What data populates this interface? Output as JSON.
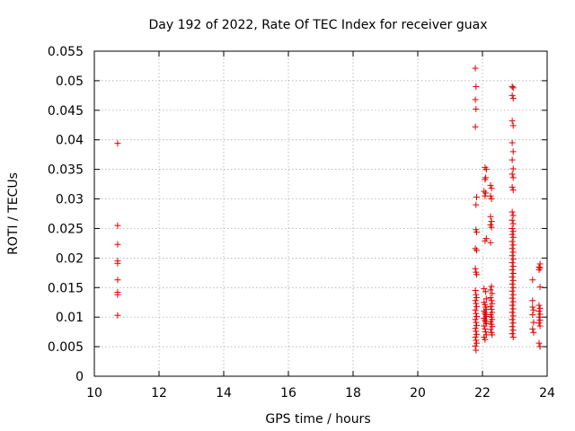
{
  "chart_data": {
    "type": "scatter",
    "title": "Day 192 of 2022, Rate Of TEC Index for receiver guax",
    "xlabel": "GPS time / hours",
    "ylabel": "ROTI / TECUs",
    "xlim": [
      10,
      24
    ],
    "ylim": [
      0,
      0.055
    ],
    "x_ticks": [
      10,
      12,
      14,
      16,
      18,
      20,
      22,
      24
    ],
    "y_ticks": [
      0,
      0.005,
      0.01,
      0.015,
      0.02,
      0.025,
      0.03,
      0.035,
      0.04,
      0.045,
      0.05,
      0.055
    ],
    "x_tick_labels": [
      "10",
      "12",
      "14",
      "16",
      "18",
      "20",
      "22",
      "24"
    ],
    "y_tick_labels": [
      "0",
      "0.005",
      "0.01",
      "0.015",
      "0.02",
      "0.025",
      "0.03",
      "0.035",
      "0.04",
      "0.045",
      "0.05",
      "0.055"
    ],
    "grid": true,
    "marker": "+",
    "color": "#e00000",
    "series": [
      {
        "name": "ROTI",
        "points": [
          [
            10.72,
            0.0394
          ],
          [
            10.72,
            0.0255
          ],
          [
            10.72,
            0.0223
          ],
          [
            10.72,
            0.0195
          ],
          [
            10.72,
            0.0191
          ],
          [
            10.72,
            0.0163
          ],
          [
            10.72,
            0.0142
          ],
          [
            10.72,
            0.0138
          ],
          [
            10.72,
            0.0103
          ],
          [
            21.78,
            0.0521
          ],
          [
            21.8,
            0.049
          ],
          [
            21.78,
            0.0468
          ],
          [
            21.8,
            0.0452
          ],
          [
            21.78,
            0.0422
          ],
          [
            21.82,
            0.0303
          ],
          [
            21.8,
            0.029
          ],
          [
            21.8,
            0.0248
          ],
          [
            21.82,
            0.0244
          ],
          [
            21.78,
            0.0216
          ],
          [
            21.82,
            0.0213
          ],
          [
            21.78,
            0.0182
          ],
          [
            21.8,
            0.0176
          ],
          [
            21.82,
            0.0172
          ],
          [
            21.78,
            0.0145
          ],
          [
            21.8,
            0.0138
          ],
          [
            21.82,
            0.0133
          ],
          [
            21.78,
            0.0128
          ],
          [
            21.8,
            0.0123
          ],
          [
            21.82,
            0.0118
          ],
          [
            21.78,
            0.0112
          ],
          [
            21.8,
            0.0106
          ],
          [
            21.82,
            0.0101
          ],
          [
            21.78,
            0.0096
          ],
          [
            21.8,
            0.0091
          ],
          [
            21.82,
            0.0086
          ],
          [
            21.78,
            0.0081
          ],
          [
            21.8,
            0.0076
          ],
          [
            21.82,
            0.0071
          ],
          [
            21.78,
            0.0066
          ],
          [
            21.8,
            0.0061
          ],
          [
            21.82,
            0.0056
          ],
          [
            21.78,
            0.0051
          ],
          [
            21.8,
            0.0044
          ],
          [
            22.08,
            0.0353
          ],
          [
            22.12,
            0.035
          ],
          [
            22.1,
            0.0336
          ],
          [
            22.08,
            0.0333
          ],
          [
            22.05,
            0.0313
          ],
          [
            22.1,
            0.031
          ],
          [
            22.08,
            0.0305
          ],
          [
            22.12,
            0.0233
          ],
          [
            22.08,
            0.0229
          ],
          [
            22.05,
            0.0148
          ],
          [
            22.1,
            0.0143
          ],
          [
            22.12,
            0.0131
          ],
          [
            22.05,
            0.0125
          ],
          [
            22.08,
            0.0121
          ],
          [
            22.1,
            0.0117
          ],
          [
            22.12,
            0.0113
          ],
          [
            22.05,
            0.011
          ],
          [
            22.08,
            0.0107
          ],
          [
            22.1,
            0.0104
          ],
          [
            22.12,
            0.0101
          ],
          [
            22.05,
            0.0098
          ],
          [
            22.08,
            0.0095
          ],
          [
            22.1,
            0.0092
          ],
          [
            22.12,
            0.0089
          ],
          [
            22.05,
            0.0085
          ],
          [
            22.08,
            0.008
          ],
          [
            22.1,
            0.0075
          ],
          [
            22.12,
            0.007
          ],
          [
            22.05,
            0.0066
          ],
          [
            22.08,
            0.0062
          ],
          [
            22.25,
            0.0323
          ],
          [
            22.28,
            0.0318
          ],
          [
            22.25,
            0.0305
          ],
          [
            22.28,
            0.03
          ],
          [
            22.25,
            0.027
          ],
          [
            22.28,
            0.0262
          ],
          [
            22.25,
            0.0256
          ],
          [
            22.28,
            0.0252
          ],
          [
            22.25,
            0.0226
          ],
          [
            22.28,
            0.0152
          ],
          [
            22.25,
            0.0146
          ],
          [
            22.3,
            0.014
          ],
          [
            22.25,
            0.0133
          ],
          [
            22.28,
            0.0128
          ],
          [
            22.3,
            0.0123
          ],
          [
            22.25,
            0.0118
          ],
          [
            22.28,
            0.0113
          ],
          [
            22.3,
            0.0108
          ],
          [
            22.25,
            0.0104
          ],
          [
            22.28,
            0.01
          ],
          [
            22.3,
            0.0096
          ],
          [
            22.25,
            0.0092
          ],
          [
            22.28,
            0.0088
          ],
          [
            22.3,
            0.0084
          ],
          [
            22.25,
            0.0079
          ],
          [
            22.28,
            0.0074
          ],
          [
            22.3,
            0.007
          ],
          [
            22.92,
            0.049
          ],
          [
            22.95,
            0.0488
          ],
          [
            22.92,
            0.0475
          ],
          [
            22.95,
            0.047
          ],
          [
            22.92,
            0.0432
          ],
          [
            22.95,
            0.0424
          ],
          [
            22.92,
            0.0395
          ],
          [
            22.95,
            0.038
          ],
          [
            22.92,
            0.0366
          ],
          [
            22.95,
            0.0351
          ],
          [
            22.92,
            0.0342
          ],
          [
            22.95,
            0.0336
          ],
          [
            22.92,
            0.032
          ],
          [
            22.95,
            0.0315
          ],
          [
            22.92,
            0.0278
          ],
          [
            22.95,
            0.0272
          ],
          [
            22.92,
            0.0264
          ],
          [
            22.95,
            0.0258
          ],
          [
            22.92,
            0.025
          ],
          [
            22.95,
            0.0245
          ],
          [
            22.92,
            0.024
          ],
          [
            22.95,
            0.0235
          ],
          [
            22.92,
            0.0228
          ],
          [
            22.95,
            0.0222
          ],
          [
            22.92,
            0.0216
          ],
          [
            22.95,
            0.021
          ],
          [
            22.92,
            0.0204
          ],
          [
            22.95,
            0.0198
          ],
          [
            22.92,
            0.0192
          ],
          [
            22.95,
            0.0186
          ],
          [
            22.92,
            0.018
          ],
          [
            22.95,
            0.0174
          ],
          [
            22.92,
            0.0168
          ],
          [
            22.95,
            0.0162
          ],
          [
            22.92,
            0.0156
          ],
          [
            22.95,
            0.015
          ],
          [
            22.92,
            0.0144
          ],
          [
            22.95,
            0.0138
          ],
          [
            22.92,
            0.0132
          ],
          [
            22.95,
            0.0126
          ],
          [
            22.92,
            0.012
          ],
          [
            22.95,
            0.0114
          ],
          [
            22.92,
            0.0108
          ],
          [
            22.95,
            0.0102
          ],
          [
            22.92,
            0.0096
          ],
          [
            22.95,
            0.009
          ],
          [
            22.92,
            0.0084
          ],
          [
            22.95,
            0.0078
          ],
          [
            22.92,
            0.0072
          ],
          [
            22.95,
            0.0066
          ],
          [
            23.55,
            0.0163
          ],
          [
            23.55,
            0.0128
          ],
          [
            23.55,
            0.0117
          ],
          [
            23.58,
            0.0112
          ],
          [
            23.55,
            0.0104
          ],
          [
            23.58,
            0.0091
          ],
          [
            23.55,
            0.008
          ],
          [
            23.58,
            0.0074
          ],
          [
            23.78,
            0.019
          ],
          [
            23.75,
            0.0185
          ],
          [
            23.78,
            0.0183
          ],
          [
            23.75,
            0.018
          ],
          [
            23.78,
            0.0151
          ],
          [
            23.75,
            0.012
          ],
          [
            23.78,
            0.0115
          ],
          [
            23.75,
            0.011
          ],
          [
            23.78,
            0.0105
          ],
          [
            23.75,
            0.01
          ],
          [
            23.78,
            0.0095
          ],
          [
            23.75,
            0.009
          ],
          [
            23.78,
            0.0085
          ],
          [
            23.75,
            0.0056
          ],
          [
            23.78,
            0.005
          ]
        ]
      }
    ]
  }
}
